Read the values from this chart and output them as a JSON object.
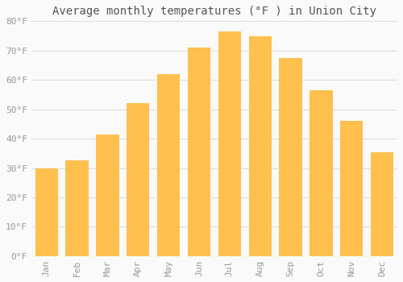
{
  "title": "Average monthly temperatures (°F ) in Union City",
  "months": [
    "Jan",
    "Feb",
    "Mar",
    "Apr",
    "May",
    "Jun",
    "Jul",
    "Aug",
    "Sep",
    "Oct",
    "Nov",
    "Dec"
  ],
  "values": [
    30,
    32.5,
    41.5,
    52,
    62,
    71,
    76.5,
    75,
    67.5,
    56.5,
    46,
    35.5
  ],
  "bar_color_face": "#FFC04D",
  "background_color": "#FAFAFA",
  "grid_color": "#DDDDDD",
  "tick_label_color": "#999999",
  "title_color": "#555555",
  "ylim": [
    0,
    80
  ],
  "yticks": [
    0,
    10,
    20,
    30,
    40,
    50,
    60,
    70,
    80
  ],
  "ytick_labels": [
    "0°F",
    "10°F",
    "20°F",
    "30°F",
    "40°F",
    "50°F",
    "60°F",
    "70°F",
    "80°F"
  ],
  "font_family": "monospace",
  "title_fontsize": 10,
  "tick_fontsize": 8,
  "bar_width": 0.75,
  "figsize": [
    5.0,
    3.5
  ],
  "dpi": 100
}
